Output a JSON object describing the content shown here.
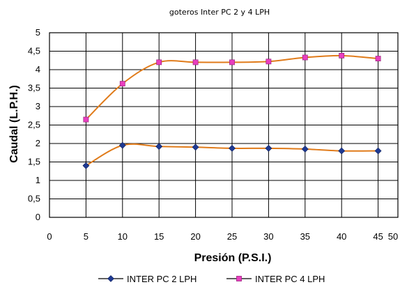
{
  "chart_data": {
    "type": "line",
    "title": "goteros Inter PC 2 y 4 LPH",
    "xlabel": "Presión (P.S.I.)",
    "ylabel": "Caudal (L.P.H.)",
    "xlim": [
      0,
      50
    ],
    "ylim": [
      0,
      5
    ],
    "x_ticks": [
      "0",
      "5",
      "10",
      "15",
      "20",
      "25",
      "30",
      "35",
      "40",
      "45",
      "50"
    ],
    "y_ticks": [
      "0",
      "0,5",
      "1",
      "1,5",
      "2",
      "2,5",
      "3",
      "3,5",
      "4",
      "4,5",
      "5"
    ],
    "grid": true,
    "legend_position": "bottom",
    "line_color": "#e07b1a",
    "series": [
      {
        "name": "INTER PC 2 LPH",
        "marker": "diamond",
        "marker_color": "#1f3a93",
        "x": [
          5,
          10,
          15,
          20,
          25,
          30,
          35,
          40,
          45
        ],
        "y": [
          1.4,
          1.95,
          1.92,
          1.9,
          1.87,
          1.87,
          1.85,
          1.8,
          1.8
        ]
      },
      {
        "name": "INTER PC 4 LPH",
        "marker": "square",
        "marker_color": "#e83fbf",
        "x": [
          5,
          10,
          15,
          20,
          25,
          30,
          35,
          40,
          45
        ],
        "y": [
          2.65,
          3.62,
          4.2,
          4.2,
          4.2,
          4.22,
          4.33,
          4.38,
          4.3
        ]
      }
    ]
  }
}
